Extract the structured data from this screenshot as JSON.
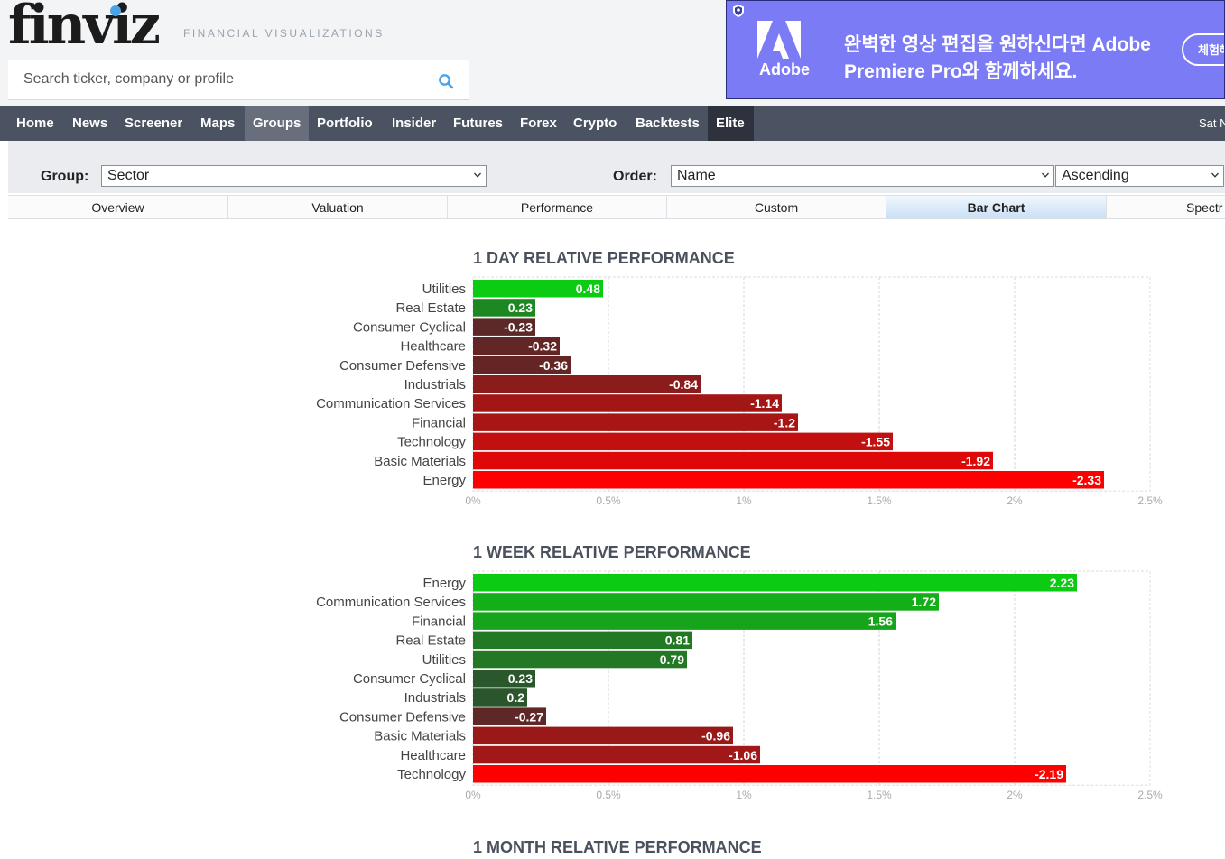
{
  "header": {
    "logo": "finviz",
    "tagline": "FINANCIAL VISUALIZATIONS",
    "search_placeholder": "Search ticker, company or profile"
  },
  "ad": {
    "brand": "Adobe",
    "line1": "완벽한 영상 편집을 원하신다면 Adobe",
    "line2": "Premiere Pro와 함께하세요.",
    "button": "체험해"
  },
  "nav": {
    "items": [
      {
        "label": "Home"
      },
      {
        "label": "News"
      },
      {
        "label": "Screener"
      },
      {
        "label": "Maps"
      },
      {
        "label": "Groups"
      },
      {
        "label": "Portfolio"
      },
      {
        "label": "Insider"
      },
      {
        "label": "Futures"
      },
      {
        "label": "Forex"
      },
      {
        "label": "Crypto"
      },
      {
        "label": "Backtests"
      },
      {
        "label": "Elite"
      }
    ],
    "active": "Groups",
    "date": "Sat N"
  },
  "controls": {
    "group_label": "Group:",
    "group_value": "Sector",
    "order_label": "Order:",
    "order_value": "Name",
    "direction_value": "Ascending"
  },
  "tabs": {
    "items": [
      {
        "label": "Overview"
      },
      {
        "label": "Valuation"
      },
      {
        "label": "Performance"
      },
      {
        "label": "Custom"
      },
      {
        "label": "Bar Chart"
      },
      {
        "label": "Spectr"
      }
    ],
    "active": "Bar Chart"
  },
  "colors": {
    "nav_bg": "#4b5262",
    "positive_strong": "#0bcc12",
    "positive_weak": "#2e4a2e",
    "negative_weak": "#4a2c2c",
    "negative_strong": "#ff0000"
  },
  "chart_data": [
    {
      "type": "bar",
      "orientation": "horizontal",
      "title": "1 DAY RELATIVE PERFORMANCE",
      "categories": [
        "Utilities",
        "Real Estate",
        "Consumer Cyclical",
        "Healthcare",
        "Consumer Defensive",
        "Industrials",
        "Communication Services",
        "Financial",
        "Technology",
        "Basic Materials",
        "Energy"
      ],
      "values": [
        0.48,
        0.23,
        -0.23,
        -0.32,
        -0.36,
        -0.84,
        -1.14,
        -1.2,
        -1.55,
        -1.92,
        -2.33
      ],
      "value_labels": [
        "0.48",
        "0.23",
        "-0.23",
        "-0.32",
        "-0.36",
        "-0.84",
        "-1.14",
        "-1.2",
        "-1.55",
        "-1.92",
        "-2.33"
      ],
      "xticks": [
        "0%",
        "0.5%",
        "1%",
        "1.5%",
        "2%",
        "2.5%"
      ],
      "xlim": [
        0,
        2.5
      ],
      "bar_length": "absolute value",
      "grid": true
    },
    {
      "type": "bar",
      "orientation": "horizontal",
      "title": "1 WEEK RELATIVE PERFORMANCE",
      "categories": [
        "Energy",
        "Communication Services",
        "Financial",
        "Real Estate",
        "Utilities",
        "Consumer Cyclical",
        "Industrials",
        "Consumer Defensive",
        "Basic Materials",
        "Healthcare",
        "Technology"
      ],
      "values": [
        2.23,
        1.72,
        1.56,
        0.81,
        0.79,
        0.23,
        0.2,
        -0.27,
        -0.96,
        -1.06,
        -2.19
      ],
      "value_labels": [
        "2.23",
        "1.72",
        "1.56",
        "0.81",
        "0.79",
        "0.23",
        "0.2",
        "-0.27",
        "-0.96",
        "-1.06",
        "-2.19"
      ],
      "xticks": [
        "0%",
        "0.5%",
        "1%",
        "1.5%",
        "2%",
        "2.5%"
      ],
      "xlim": [
        0,
        2.5
      ],
      "bar_length": "absolute value",
      "grid": true
    },
    {
      "type": "bar",
      "orientation": "horizontal",
      "title": "1 MONTH RELATIVE PERFORMANCE"
    }
  ]
}
